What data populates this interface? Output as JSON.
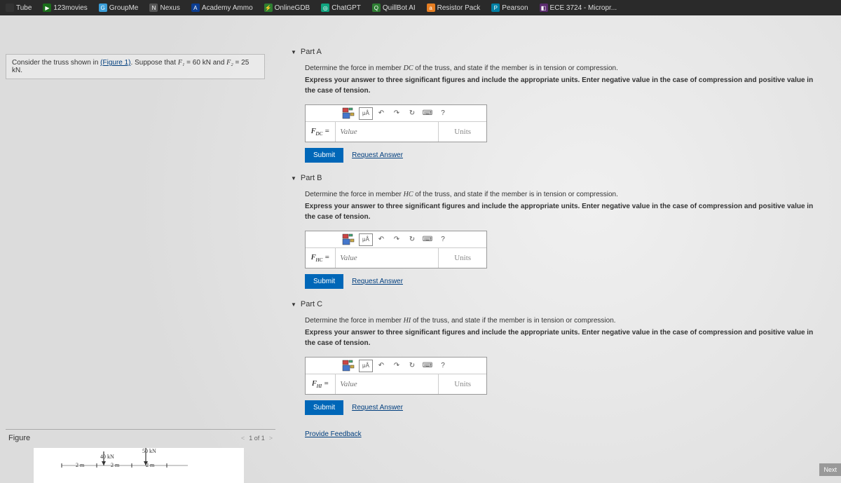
{
  "bookmarks": [
    {
      "label": "Tube",
      "icon_bg": "#333",
      "icon_text": ""
    },
    {
      "label": "123movies",
      "icon_bg": "#1a6e1a",
      "icon_text": "▶"
    },
    {
      "label": "GroupMe",
      "icon_bg": "#3b9ed8",
      "icon_text": "G"
    },
    {
      "label": "Nexus",
      "icon_bg": "#555",
      "icon_text": "N"
    },
    {
      "label": "Academy Ammo",
      "icon_bg": "#0b3d91",
      "icon_text": "A"
    },
    {
      "label": "OnlineGDB",
      "icon_bg": "#2e7d32",
      "icon_text": "⚡"
    },
    {
      "label": "ChatGPT",
      "icon_bg": "#10a37f",
      "icon_text": "◎"
    },
    {
      "label": "QuillBot AI",
      "icon_bg": "#2e7d32",
      "icon_text": "Q"
    },
    {
      "label": "Resistor Pack",
      "icon_bg": "#e67e22",
      "icon_text": "a"
    },
    {
      "label": "Pearson",
      "icon_bg": "#007fa3",
      "icon_text": "P"
    },
    {
      "label": "ECE 3724 - Micropr...",
      "icon_bg": "#5b2c6f",
      "icon_text": "◧"
    }
  ],
  "problem": {
    "prefix": "Consider the truss shown in ",
    "figure_link": "(Figure 1)",
    "suffix_1": ". Suppose that ",
    "f1_var": "F₁",
    "f1_val": " = 60 kN and ",
    "f2_var": "F₂",
    "f2_val": " = 25 kN."
  },
  "figure": {
    "title": "Figure",
    "nav_prev": "<",
    "nav_text": "1 of 1",
    "nav_next": ">",
    "load1": "40 kN",
    "load2": "50 kN",
    "dim": "2 m"
  },
  "parts": {
    "a": {
      "title": "Part A",
      "instruction_html": "Determine the force in member <i>DC</i> of the truss, and state if the member is in tension or compression.",
      "bold_instruction": "Express your answer to three significant figures and include the appropriate units. Enter negative value in the case of compression and positive value in the case of tension.",
      "var_label": "F_DC =",
      "value_placeholder": "Value",
      "units_placeholder": "Units",
      "submit": "Submit",
      "request": "Request Answer"
    },
    "b": {
      "title": "Part B",
      "instruction_html": "Determine the force in member <i>HC</i> of the truss, and state if the member is in tension or compression.",
      "bold_instruction": "Express your answer to three significant figures and include the appropriate units. Enter negative value in the case of compression and positive value in the case of tension.",
      "var_label": "F_HC =",
      "value_placeholder": "Value",
      "units_placeholder": "Units",
      "submit": "Submit",
      "request": "Request Answer"
    },
    "c": {
      "title": "Part C",
      "instruction_html": "Determine the force in member <i>HI</i> of the truss, and state if the member is in tension or compression.",
      "bold_instruction": "Express your answer to three significant figures and include the appropriate units. Enter negative value in the case of compression and positive value in the case of tension.",
      "var_label": "F_HI =",
      "value_placeholder": "Value",
      "units_placeholder": "Units",
      "submit": "Submit",
      "request": "Request Answer"
    }
  },
  "feedback": "Provide Feedback",
  "next": "Next",
  "toolbar": {
    "mu_a": "μÅ",
    "undo": "↶",
    "redo": "↷",
    "reset": "↻",
    "keyboard": "⌨",
    "help": "?"
  }
}
